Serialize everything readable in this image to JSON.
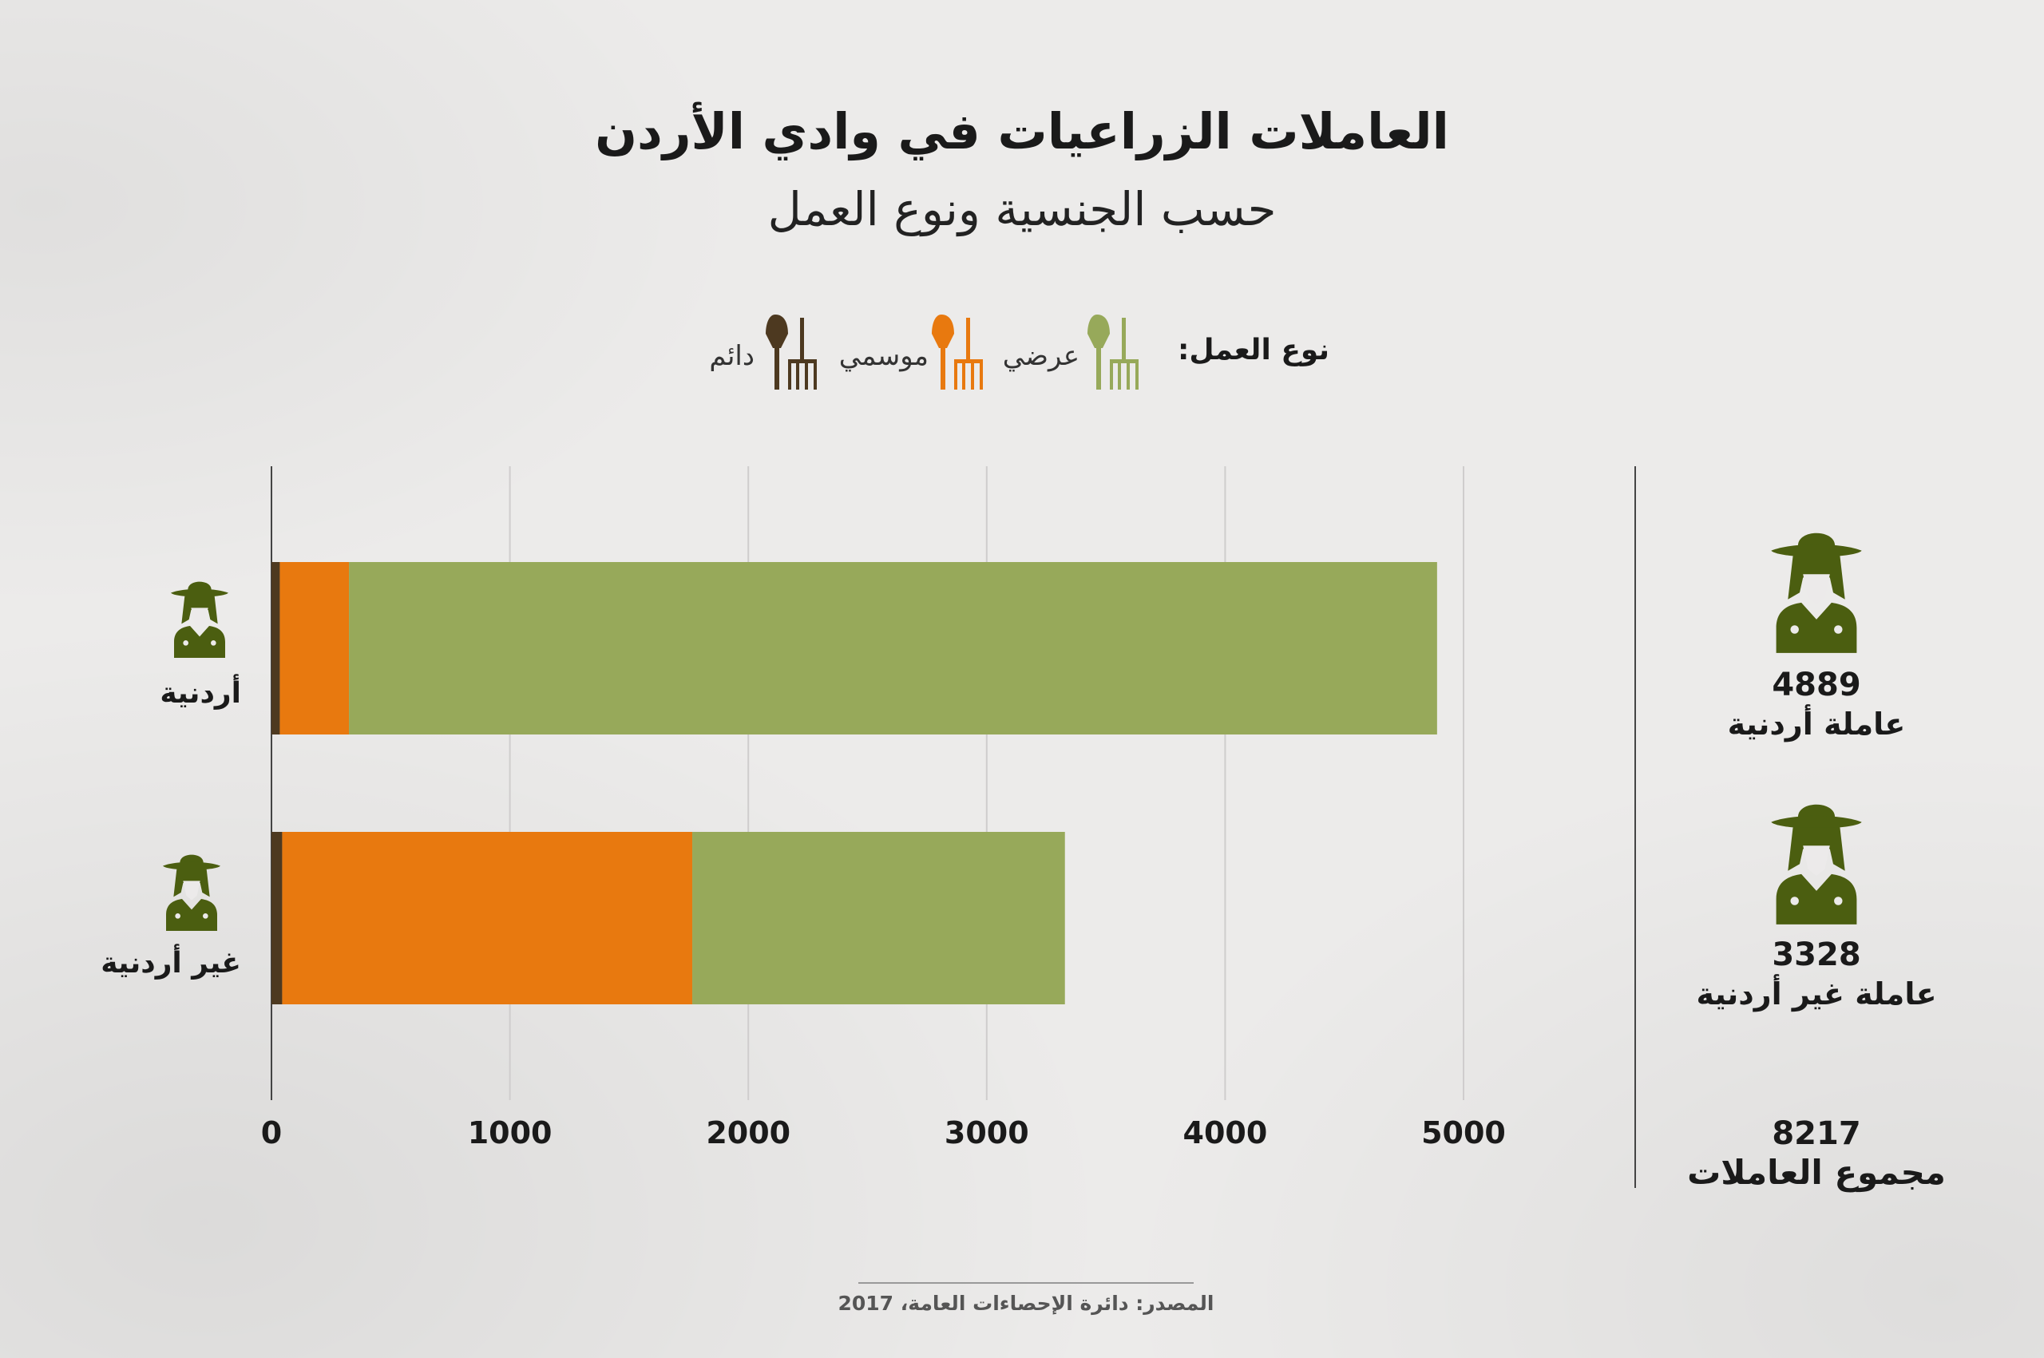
{
  "header": {
    "title": "العاملات الزراعيات في وادي الأردن",
    "subtitle": "حسب الجنسية ونوع العمل"
  },
  "legend": {
    "title": "نوع العمل:",
    "items": [
      {
        "label": "عرضي",
        "color": "#97a95a",
        "icon": "shovel-rake-icon"
      },
      {
        "label": "موسمي",
        "color": "#e8790f",
        "icon": "shovel-rake-icon"
      },
      {
        "label": "دائم",
        "color": "#4d3920",
        "icon": "shovel-rake-icon"
      }
    ]
  },
  "chart_data": {
    "type": "bar",
    "orientation": "horizontal",
    "stacked": true,
    "categories": [
      "أردنية",
      "غير أردنية"
    ],
    "series": [
      {
        "name": "دائم",
        "color": "#4d3920",
        "values": [
          35,
          45
        ]
      },
      {
        "name": "موسمي",
        "color": "#e8790f",
        "values": [
          290,
          1720
        ]
      },
      {
        "name": "عرضي",
        "color": "#97a95a",
        "values": [
          4564,
          1563
        ]
      }
    ],
    "xlim": [
      0,
      5000
    ],
    "xticks": [
      "0",
      "1000",
      "2000",
      "3000",
      "4000",
      "5000"
    ],
    "grid": true
  },
  "summary": {
    "items": [
      {
        "value": "4889",
        "label": "عاملة أردنية"
      },
      {
        "value": "3328",
        "label": "عاملة غير أردنية"
      }
    ],
    "total": {
      "value": "8217",
      "label": "مجموع العاملات"
    }
  },
  "source": "المصدر: دائرة الإحصاءات العامة، 2017",
  "icons": {
    "worker": "female-farmer-icon"
  }
}
